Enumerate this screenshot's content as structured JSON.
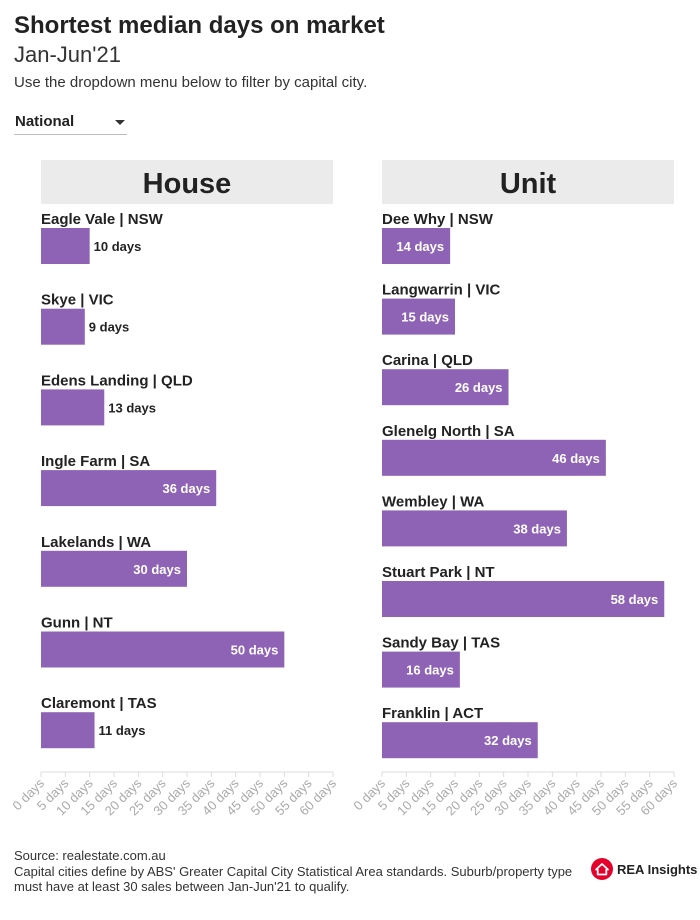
{
  "header": {
    "title": "Shortest median days on market",
    "subtitle": "Jan-Jun'21",
    "description": "Use the dropdown menu below to filter by capital city."
  },
  "filter": {
    "selected": "National"
  },
  "colors": {
    "bar": "#8e63b5",
    "panel_header_bg": "#ebebeb",
    "axis": "#dddddd",
    "tick_text": "#aaaaaa",
    "logo_red": "#e4002b"
  },
  "chart_data": [
    {
      "type": "bar",
      "orientation": "horizontal",
      "title": "House",
      "categories": [
        "Eagle Vale | NSW",
        "Skye | VIC",
        "Edens Landing | QLD",
        "Ingle Farm | SA",
        "Lakelands | WA",
        "Gunn | NT",
        "Claremont | TAS"
      ],
      "values": [
        10,
        9,
        13,
        36,
        30,
        50,
        11
      ],
      "value_labels": [
        "10 days",
        "9 days",
        "13 days",
        "36 days",
        "30 days",
        "50 days",
        "11 days"
      ],
      "xlim": [
        0,
        60
      ],
      "xticks": [
        "0 days",
        "5 days",
        "10 days",
        "15 days",
        "20 days",
        "25 days",
        "30 days",
        "35 days",
        "40 days",
        "45 days",
        "50 days",
        "55 days",
        "60 days"
      ]
    },
    {
      "type": "bar",
      "orientation": "horizontal",
      "title": "Unit",
      "categories": [
        "Dee Why | NSW",
        "Langwarrin | VIC",
        "Carina | QLD",
        "Glenelg North | SA",
        "Wembley | WA",
        "Stuart Park | NT",
        "Sandy Bay | TAS",
        "Franklin | ACT"
      ],
      "values": [
        14,
        15,
        26,
        46,
        38,
        58,
        16,
        32
      ],
      "value_labels": [
        "14 days",
        "15 days",
        "26 days",
        "46 days",
        "38 days",
        "58 days",
        "16 days",
        "32 days"
      ],
      "xlim": [
        0,
        60
      ],
      "xticks": [
        "0 days",
        "5 days",
        "10 days",
        "15 days",
        "20 days",
        "25 days",
        "30 days",
        "35 days",
        "40 days",
        "45 days",
        "50 days",
        "55 days",
        "60 days"
      ]
    }
  ],
  "footer": {
    "source": "Source: realestate.com.au",
    "note": "Capital cities define by ABS' Greater Capital City Statistical Area standards. Suburb/property type must have at least 30 sales between Jan-Jun'21 to qualify."
  },
  "logo": {
    "text": "REA Insights",
    "icon": "house-icon"
  }
}
